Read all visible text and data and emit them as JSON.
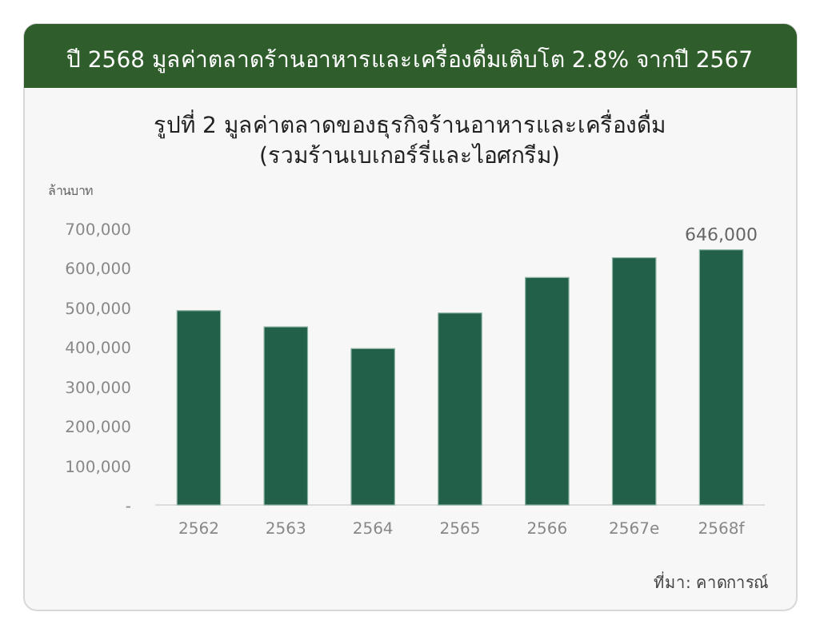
{
  "chart_data": {
    "type": "bar",
    "title": "ปี 2568 มูลค่าตลาดร้านอาหารและเครื่องดื่มเติบโต  2.8% จากปี 2567",
    "subtitle": "รูปที่ 2 มูลค่าตลาดของธุรกิจร้านอาหารและเครื่องดื่ม\n(รวมร้านเบเกอร์รี่และไอศกรีม)",
    "ylabel": "ล้านบาท",
    "annotations": [
      "ที่มา: คาดการณ์"
    ],
    "categories": [
      "2562",
      "2563",
      "2564",
      "2565",
      "2566",
      "2567e",
      "2568f"
    ],
    "values": [
      492000,
      451000,
      396000,
      486000,
      576000,
      626000,
      646000
    ],
    "value_labels": [
      null,
      null,
      null,
      null,
      null,
      null,
      "646,000"
    ],
    "color": "#22604a",
    "ylim": [
      0,
      700000
    ],
    "yticks": [
      {
        "value": 0,
        "label": "-"
      },
      {
        "value": 100000,
        "label": "100,000"
      },
      {
        "value": 200000,
        "label": "200,000"
      },
      {
        "value": 300000,
        "label": "300,000"
      },
      {
        "value": 400000,
        "label": "400,000"
      },
      {
        "value": 500000,
        "label": "500,000"
      },
      {
        "value": 600000,
        "label": "600,000"
      },
      {
        "value": 700000,
        "label": "700,000"
      }
    ]
  }
}
